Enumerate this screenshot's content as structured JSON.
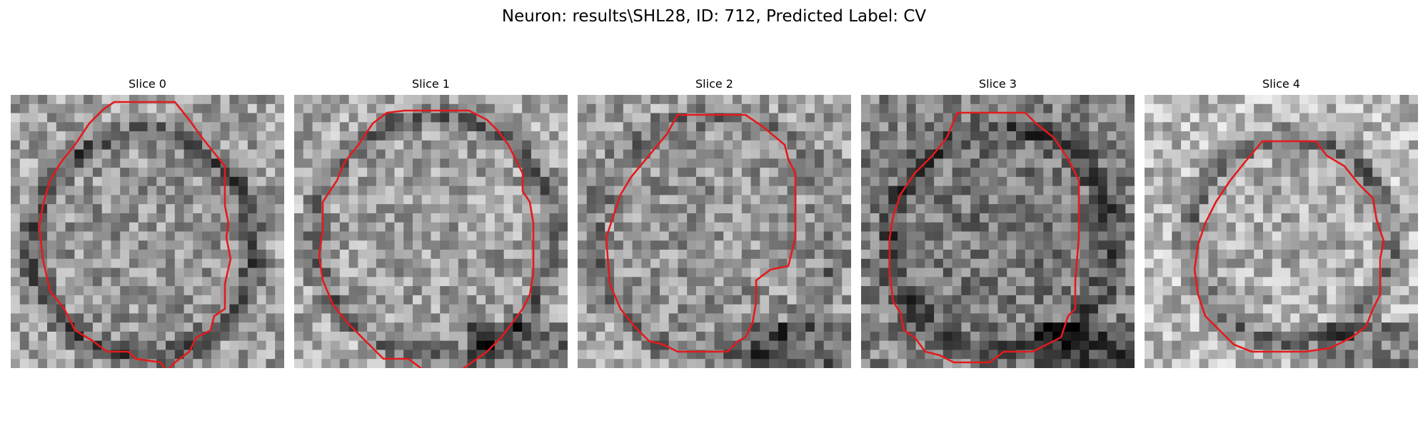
{
  "figure": {
    "title": "Neuron: results\\SHL28, ID: 712, Predicted Label: CV",
    "outline_color": "#e41a1c",
    "colormap": "gray"
  },
  "panels": [
    {
      "title": "Slice 0",
      "image": "grayscale microscopy crop of a neuron",
      "outline": "red polygon contour"
    },
    {
      "title": "Slice 1",
      "image": "grayscale microscopy crop of a neuron",
      "outline": "red polygon contour"
    },
    {
      "title": "Slice 2",
      "image": "grayscale microscopy crop of a neuron",
      "outline": "red polygon contour"
    },
    {
      "title": "Slice 3",
      "image": "grayscale microscopy crop of a neuron",
      "outline": "red polygon contour"
    },
    {
      "title": "Slice 4",
      "image": "grayscale microscopy crop of a neuron",
      "outline": "red polygon contour"
    }
  ]
}
